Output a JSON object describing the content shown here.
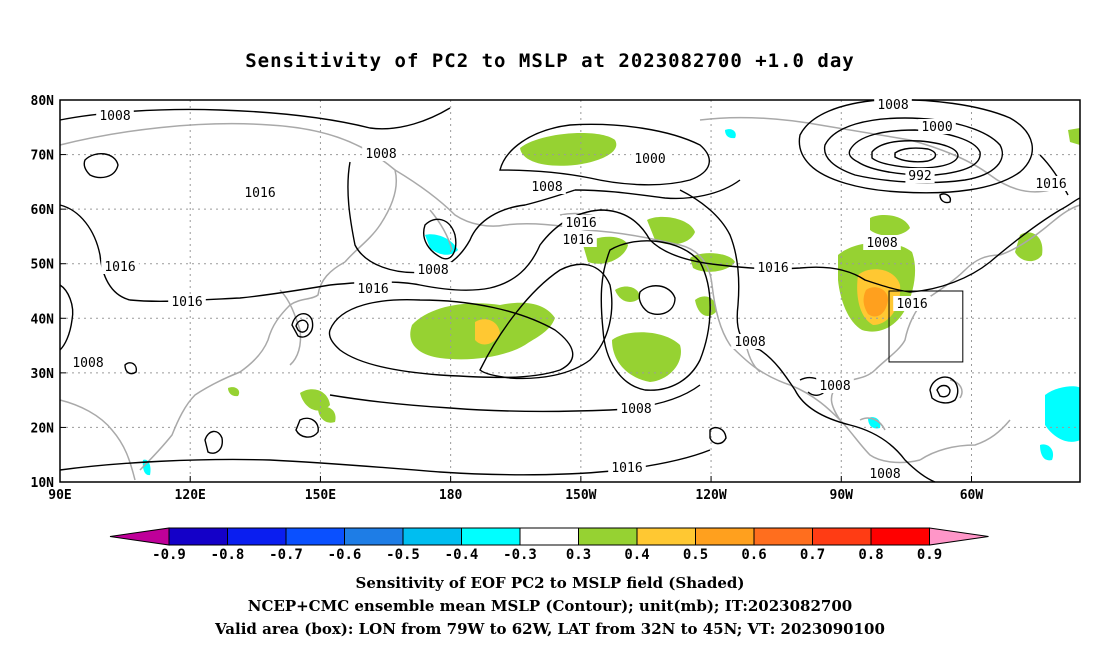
{
  "title": "Sensitivity of PC2 to MSLP at 2023082700 +1.0 day",
  "map": {
    "lat_labels": [
      "80N",
      "70N",
      "60N",
      "50N",
      "40N",
      "30N",
      "20N",
      "10N"
    ],
    "lon_labels": [
      "90E",
      "120E",
      "150E",
      "180",
      "150W",
      "120W",
      "90W",
      "60W"
    ],
    "contour_labels": [
      "1008",
      "1008",
      "1016",
      "1016",
      "1016",
      "1008",
      "1008",
      "1016",
      "1000",
      "1008",
      "1016",
      "1016",
      "1008",
      "1016",
      "1008",
      "1008",
      "1016",
      "1008",
      "1000",
      "992",
      "1016",
      "1008",
      "1016",
      "1008",
      "1008"
    ],
    "valid_box": {
      "lon_min": -79,
      "lon_max": -62,
      "lat_min": 32,
      "lat_max": 45
    },
    "colors": {
      "coast": "#a9a9a9",
      "contour": "#000000",
      "grid": "#9a9a9a"
    }
  },
  "colorbar": {
    "labels": [
      "-0.9",
      "-0.8",
      "-0.7",
      "-0.6",
      "-0.5",
      "-0.4",
      "-0.3",
      "0.3",
      "0.4",
      "0.5",
      "0.6",
      "0.7",
      "0.8",
      "0.9"
    ],
    "colors": [
      "#bf0099",
      "#1400c8",
      "#0a1ef0",
      "#0a50ff",
      "#1e7de6",
      "#00bef0",
      "#00ffff",
      "#ffffff",
      "#96d232",
      "#ffc832",
      "#ffa01e",
      "#ff6e1e",
      "#ff3c14",
      "#ff0000",
      "#ff96c8"
    ]
  },
  "captions": {
    "line1": "Sensitivity of EOF PC2 to MSLP field (Shaded)",
    "line2": "NCEP+CMC ensemble mean MSLP (Contour); unit(mb); IT:2023082700",
    "line3": "Valid area (box): LON from 79W to 62W, LAT from 32N to 45N; VT: 2023090100"
  }
}
